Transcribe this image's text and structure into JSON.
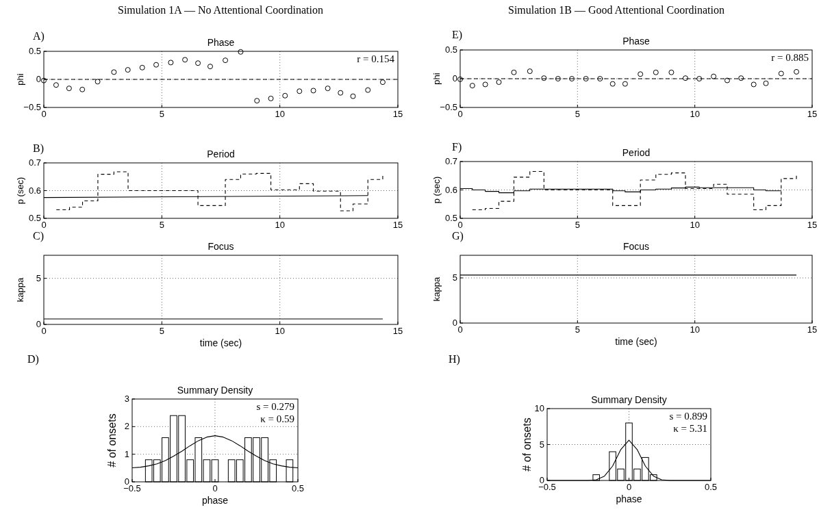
{
  "chart_data": [
    {
      "type": "scatter",
      "title": "Phase",
      "ylabel": "phi",
      "annotations": [
        "Simulation 1A — No Attentional Coordination",
        "A)",
        "r = 0.154"
      ],
      "x": [
        0,
        0.52,
        1.07,
        1.63,
        2.28,
        2.97,
        3.56,
        4.17,
        4.76,
        5.38,
        5.98,
        6.53,
        7.05,
        7.69,
        8.34,
        9.03,
        9.62,
        10.22,
        10.83,
        11.42,
        12.03,
        12.57,
        13.1,
        13.73,
        14.36
      ],
      "values": [
        -0.02,
        -0.1,
        -0.16,
        -0.18,
        -0.04,
        0.13,
        0.17,
        0.21,
        0.26,
        0.3,
        0.35,
        0.29,
        0.23,
        0.34,
        0.49,
        -0.38,
        -0.34,
        -0.29,
        -0.21,
        -0.2,
        -0.16,
        -0.24,
        -0.3,
        -0.19,
        -0.05
      ],
      "color": "#000000",
      "marker": "circle",
      "xlim": [
        0,
        15
      ],
      "xticks": [
        0,
        5,
        10,
        15
      ],
      "ylim": [
        -0.5,
        0.5
      ],
      "yticks": [
        {
          "value": -0.5,
          "label": "−0.5"
        },
        0,
        0.5
      ],
      "grid": true,
      "ref_lines": [
        {
          "axis": "y",
          "value": 0,
          "line_style": "dashed",
          "color": "#000000"
        }
      ]
    },
    {
      "type": "scatter",
      "title": "Phase",
      "ylabel": "phi",
      "annotations": [
        "Simulation 1B — Good Attentional Coordination",
        "E)",
        "r = 0.885"
      ],
      "x": [
        0,
        0.52,
        1.07,
        1.65,
        2.29,
        2.97,
        3.57,
        4.17,
        4.76,
        5.36,
        5.96,
        6.5,
        7.03,
        7.68,
        8.34,
        9.0,
        9.6,
        10.19,
        10.8,
        11.38,
        11.97,
        12.51,
        13.03,
        13.68,
        14.33
      ],
      "values": [
        -0.01,
        -0.12,
        -0.1,
        -0.06,
        0.11,
        0.13,
        0.01,
        0.0,
        0.0,
        0.0,
        0.0,
        -0.09,
        -0.09,
        0.08,
        0.11,
        0.11,
        0.01,
        0.0,
        0.04,
        -0.03,
        0.01,
        -0.1,
        -0.08,
        0.09,
        0.12
      ],
      "color": "#000000",
      "marker": "circle",
      "xlim": [
        0,
        15
      ],
      "xticks": [
        0,
        5,
        10,
        15
      ],
      "ylim": [
        -0.5,
        0.5
      ],
      "yticks": [
        {
          "value": -0.5,
          "label": "−0.5"
        },
        0,
        0.5
      ],
      "grid": true,
      "ref_lines": [
        {
          "axis": "y",
          "value": 0,
          "line_style": "dashed",
          "color": "#000000"
        }
      ]
    },
    {
      "type": "line",
      "title": "Period",
      "ylabel": "p (sec)",
      "annotations": [
        "B)"
      ],
      "series": [
        {
          "type": "step",
          "line_style": "dashed",
          "color": "#000000",
          "x": [
            0.53,
            1.09,
            1.64,
            2.29,
            2.97,
            3.57,
            6.53,
            7.69,
            8.34,
            9.0,
            9.62,
            10.83,
            11.42,
            12.57,
            13.1,
            13.73,
            14.36
          ],
          "values": [
            0.531,
            0.54,
            0.563,
            0.659,
            0.668,
            0.6,
            0.546,
            0.64,
            0.66,
            0.662,
            0.603,
            0.625,
            0.598,
            0.527,
            0.552,
            0.64,
            0.654
          ]
        },
        {
          "line_style": "solid",
          "color": "#000000",
          "x": [
            0,
            13.73
          ],
          "values": [
            0.575,
            0.582
          ]
        }
      ],
      "xlim": [
        0,
        15
      ],
      "xticks": [
        0,
        5,
        10,
        15
      ],
      "ylim": [
        0.5,
        0.7
      ],
      "yticks": [
        0.5,
        0.6,
        0.7
      ],
      "grid": true
    },
    {
      "type": "step",
      "title": "Period",
      "ylabel": "p (sec)",
      "annotations": [
        "F)"
      ],
      "series": [
        {
          "line_style": "dashed",
          "color": "#000000",
          "x": [
            0.52,
            1.07,
            1.65,
            2.29,
            2.97,
            3.57,
            6.5,
            7.68,
            8.34,
            9.0,
            9.6,
            10.8,
            11.38,
            12.51,
            13.03,
            13.68,
            14.33
          ],
          "values": [
            0.53,
            0.535,
            0.56,
            0.645,
            0.665,
            0.6,
            0.545,
            0.635,
            0.655,
            0.66,
            0.605,
            0.62,
            0.585,
            0.53,
            0.545,
            0.64,
            0.65
          ]
        },
        {
          "line_style": "solid",
          "color": "#000000",
          "x": [
            0,
            0.52,
            1.07,
            1.65,
            2.29,
            2.97,
            6.5,
            7.03,
            7.68,
            8.34,
            9.0,
            9.6,
            10.19,
            12.51,
            13.03,
            13.68
          ],
          "values": [
            0.605,
            0.6,
            0.595,
            0.59,
            0.597,
            0.603,
            0.597,
            0.593,
            0.6,
            0.603,
            0.607,
            0.61,
            0.608,
            0.6,
            0.597,
            0.597
          ]
        }
      ],
      "xlim": [
        0,
        15
      ],
      "xticks": [
        0,
        5,
        10,
        15
      ],
      "ylim": [
        0.5,
        0.7
      ],
      "yticks": [
        0.5,
        0.6,
        0.7
      ],
      "grid": true
    },
    {
      "type": "line",
      "title": "Focus",
      "xlabel": "time (sec)",
      "ylabel": "kappa",
      "annotations": [
        "C)"
      ],
      "x": [
        0,
        14.36
      ],
      "values": [
        0.59,
        0.59
      ],
      "color": "#000000",
      "xlim": [
        0,
        15
      ],
      "xticks": [
        0,
        5,
        10,
        15
      ],
      "ylim": [
        0,
        7.5
      ],
      "yticks": [
        0,
        5
      ],
      "grid": true
    },
    {
      "type": "line",
      "title": "Focus",
      "xlabel": "time (sec)",
      "ylabel": "kappa",
      "annotations": [
        "G)"
      ],
      "x": [
        0,
        14.33
      ],
      "values": [
        5.31,
        5.31
      ],
      "color": "#000000",
      "xlim": [
        0,
        15
      ],
      "xticks": [
        0,
        5,
        10,
        15
      ],
      "ylim": [
        0,
        7.5
      ],
      "yticks": [
        0,
        5
      ],
      "grid": true
    },
    {
      "type": "histogram",
      "title": "Summary Density",
      "xlabel": "phase",
      "ylabel": "# of onsets",
      "annotations": [
        "D)",
        "s = 0.279",
        "κ = 0.59"
      ],
      "bins": [
        -0.425,
        -0.375,
        -0.325,
        -0.275,
        -0.225,
        -0.175,
        -0.125,
        -0.075,
        -0.025,
        0.025,
        0.075,
        0.125,
        0.175,
        0.225,
        0.275,
        0.325,
        0.375,
        0.425,
        0.475
      ],
      "values": [
        0.8,
        0.8,
        1.6,
        2.4,
        2.4,
        0.8,
        1.6,
        0.8,
        0.8,
        0,
        0.8,
        0.8,
        1.6,
        1.6,
        1.6,
        0.8,
        0,
        0.8
      ],
      "color": "#ffffff",
      "series": [
        {
          "type": "line",
          "color": "#000000",
          "x": [
            -0.5,
            -0.45,
            -0.4,
            -0.35,
            -0.3,
            -0.25,
            -0.2,
            -0.15,
            -0.1,
            -0.05,
            0,
            0.05,
            0.1,
            0.15,
            0.2,
            0.25,
            0.3,
            0.35,
            0.4,
            0.45,
            0.5
          ],
          "values": [
            0.51,
            0.53,
            0.58,
            0.65,
            0.77,
            0.93,
            1.11,
            1.31,
            1.49,
            1.62,
            1.67,
            1.62,
            1.49,
            1.31,
            1.11,
            0.93,
            0.77,
            0.65,
            0.58,
            0.53,
            0.51
          ]
        }
      ],
      "xlim": [
        -0.5,
        0.5
      ],
      "xticks": [
        {
          "value": -0.5,
          "label": "−0.5"
        },
        0,
        0.5
      ],
      "ylim": [
        0,
        3
      ],
      "yticks": [
        0,
        1,
        2,
        3
      ],
      "grid": true
    },
    {
      "type": "histogram",
      "title": "Summary Density",
      "xlabel": "phase",
      "ylabel": "# of onsets",
      "annotations": [
        "H)",
        "s = 0.899",
        "κ = 5.31"
      ],
      "bins": [
        -0.225,
        -0.175,
        -0.125,
        -0.075,
        -0.025,
        0.025,
        0.075,
        0.125,
        0.175
      ],
      "values": [
        0.8,
        0,
        4,
        1.6,
        8,
        1.6,
        3.2,
        0.8
      ],
      "color": "#ffffff",
      "series": [
        {
          "type": "line",
          "color": "#000000",
          "x": [
            -0.5,
            -0.45,
            -0.4,
            -0.35,
            -0.3,
            -0.25,
            -0.2,
            -0.15,
            -0.1,
            -0.05,
            0,
            0.05,
            0.1,
            0.15,
            0.2,
            0.25,
            0.3,
            0.35,
            0.4,
            0.45,
            0.5
          ],
          "values": [
            0,
            0,
            0,
            0,
            0,
            0,
            0.1,
            0.6,
            2.0,
            4.3,
            5.6,
            4.3,
            2.0,
            0.6,
            0.1,
            0,
            0,
            0,
            0,
            0,
            0
          ]
        }
      ],
      "xlim": [
        -0.5,
        0.5
      ],
      "xticks": [
        {
          "value": -0.5,
          "label": "−0.5"
        },
        0,
        0.5
      ],
      "ylim": [
        0,
        10
      ],
      "yticks": [
        0,
        5,
        10
      ],
      "grid": true
    }
  ]
}
